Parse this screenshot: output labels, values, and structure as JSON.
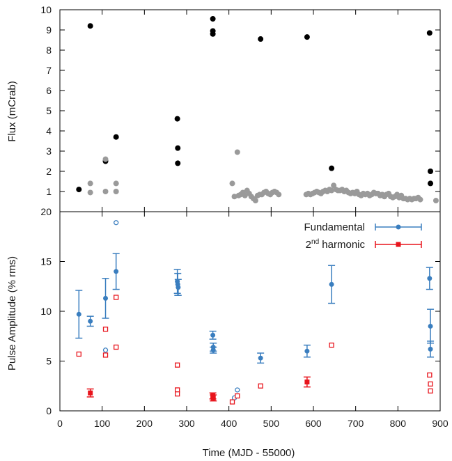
{
  "chart_data": [
    {
      "type": "scatter",
      "panel": "top",
      "xlim": [
        0,
        900
      ],
      "ylim": [
        0,
        10
      ],
      "ylabel": "Flux (mCrab)",
      "yticks": [
        "",
        "1",
        "2",
        "3",
        "4",
        "5",
        "6",
        "7",
        "8",
        "9",
        "10"
      ],
      "colors": {
        "black": "#000000",
        "gray": "#9a9a9a"
      },
      "series": [
        {
          "marker": "black-filled-circle",
          "points": [
            [
              45,
              1.1
            ],
            [
              72,
              9.2
            ],
            [
              108,
              2.5
            ],
            [
              133,
              3.7
            ],
            [
              278,
              4.6
            ],
            [
              279,
              3.15
            ],
            [
              279,
              2.4
            ],
            [
              362,
              9.55
            ],
            [
              362,
              8.95
            ],
            [
              362,
              8.8
            ],
            [
              475,
              8.55
            ],
            [
              585,
              8.65
            ],
            [
              643,
              2.15
            ],
            [
              875,
              8.85
            ],
            [
              877,
              2.0
            ],
            [
              877,
              1.4
            ]
          ]
        },
        {
          "marker": "gray-filled-circle",
          "points": [
            [
              72,
              1.4
            ],
            [
              72,
              0.95
            ],
            [
              108,
              2.6
            ],
            [
              108,
              1.0
            ],
            [
              133,
              1.4
            ],
            [
              133,
              1.0
            ],
            [
              408,
              1.4
            ],
            [
              413,
              0.75
            ],
            [
              420,
              2.95
            ],
            [
              423,
              0.8
            ],
            [
              428,
              0.85
            ],
            [
              433,
              0.95
            ],
            [
              438,
              0.8
            ],
            [
              443,
              1.05
            ],
            [
              448,
              0.9
            ],
            [
              453,
              0.75
            ],
            [
              458,
              0.65
            ],
            [
              463,
              0.55
            ],
            [
              468,
              0.8
            ],
            [
              473,
              0.85
            ],
            [
              478,
              0.85
            ],
            [
              483,
              0.95
            ],
            [
              488,
              1.0
            ],
            [
              493,
              0.9
            ],
            [
              498,
              0.85
            ],
            [
              503,
              0.95
            ],
            [
              508,
              1.0
            ],
            [
              513,
              0.95
            ],
            [
              518,
              0.85
            ],
            [
              583,
              0.85
            ],
            [
              588,
              0.9
            ],
            [
              593,
              0.85
            ],
            [
              598,
              0.9
            ],
            [
              603,
              0.95
            ],
            [
              608,
              1.0
            ],
            [
              613,
              0.95
            ],
            [
              618,
              0.9
            ],
            [
              623,
              1.0
            ],
            [
              628,
              1.05
            ],
            [
              633,
              1.0
            ],
            [
              638,
              1.1
            ],
            [
              643,
              1.05
            ],
            [
              648,
              1.3
            ],
            [
              653,
              1.1
            ],
            [
              658,
              1.05
            ],
            [
              663,
              1.05
            ],
            [
              668,
              1.1
            ],
            [
              673,
              1.0
            ],
            [
              678,
              1.05
            ],
            [
              683,
              0.95
            ],
            [
              688,
              0.9
            ],
            [
              693,
              0.95
            ],
            [
              698,
              0.9
            ],
            [
              703,
              1.0
            ],
            [
              708,
              0.85
            ],
            [
              713,
              0.8
            ],
            [
              718,
              0.9
            ],
            [
              723,
              0.85
            ],
            [
              728,
              0.9
            ],
            [
              733,
              0.8
            ],
            [
              738,
              0.85
            ],
            [
              743,
              0.95
            ],
            [
              748,
              0.9
            ],
            [
              753,
              0.9
            ],
            [
              758,
              0.8
            ],
            [
              763,
              0.85
            ],
            [
              768,
              0.75
            ],
            [
              773,
              0.85
            ],
            [
              778,
              0.9
            ],
            [
              783,
              0.75
            ],
            [
              788,
              0.7
            ],
            [
              793,
              0.75
            ],
            [
              798,
              0.85
            ],
            [
              803,
              0.7
            ],
            [
              808,
              0.8
            ],
            [
              813,
              0.65
            ],
            [
              818,
              0.65
            ],
            [
              823,
              0.6
            ],
            [
              828,
              0.65
            ],
            [
              833,
              0.6
            ],
            [
              838,
              0.65
            ],
            [
              843,
              0.65
            ],
            [
              848,
              0.7
            ],
            [
              853,
              0.6
            ],
            [
              890,
              0.55
            ]
          ]
        }
      ]
    },
    {
      "type": "scatter",
      "panel": "bottom",
      "xlim": [
        0,
        900
      ],
      "ylim": [
        0,
        20
      ],
      "xlabel": "Time (MJD - 55000)",
      "ylabel": "Pulse Amplitude (% rms)",
      "xticks": [
        0,
        100,
        200,
        300,
        400,
        500,
        600,
        700,
        800,
        900
      ],
      "yticks": [
        "0",
        "5",
        "10",
        "15",
        "20"
      ],
      "legend": {
        "position": "top-right",
        "entries": [
          {
            "label": "Fundamental",
            "color": "#3a7ebf"
          },
          {
            "label": "2",
            "superscript": "nd",
            "suffix": " harmonic",
            "color": "#e8141c"
          }
        ]
      },
      "series": [
        {
          "name": "Fundamental",
          "color": "#3a7ebf",
          "points_with_errors": [
            [
              45,
              9.7,
              2.4
            ],
            [
              72,
              9.0,
              0.5
            ],
            [
              108,
              11.3,
              2.0
            ],
            [
              133,
              14.0,
              1.8
            ],
            [
              278,
              13.0,
              1.2
            ],
            [
              279,
              12.7,
              1.1
            ],
            [
              280,
              12.4,
              0.8
            ],
            [
              362,
              7.6,
              0.4
            ],
            [
              363,
              6.4,
              0.4
            ],
            [
              363,
              6.1,
              0.3
            ],
            [
              475,
              5.3,
              0.5
            ],
            [
              585,
              6.0,
              0.6
            ],
            [
              643,
              12.7,
              1.9
            ],
            [
              875,
              13.3,
              1.1
            ],
            [
              877,
              8.5,
              1.7
            ],
            [
              877,
              6.2,
              0.8
            ]
          ],
          "open_points": [
            [
              133,
              18.9
            ],
            [
              108,
              6.1
            ],
            [
              413,
              1.3
            ],
            [
              420,
              2.1
            ]
          ]
        },
        {
          "name": "2nd harmonic",
          "color": "#e8141c",
          "points_with_errors": [
            [
              72,
              1.8,
              0.4
            ],
            [
              362,
              1.5,
              0.3
            ],
            [
              363,
              1.3,
              0.3
            ],
            [
              585,
              2.9,
              0.5
            ]
          ],
          "open_points": [
            [
              45,
              5.7
            ],
            [
              108,
              8.2
            ],
            [
              108,
              5.6
            ],
            [
              133,
              11.4
            ],
            [
              133,
              6.4
            ],
            [
              278,
              4.6
            ],
            [
              278,
              2.1
            ],
            [
              278,
              1.7
            ],
            [
              408,
              0.9
            ],
            [
              420,
              1.5
            ],
            [
              475,
              2.5
            ],
            [
              643,
              6.6
            ],
            [
              875,
              3.6
            ],
            [
              877,
              2.7
            ],
            [
              877,
              2.0
            ]
          ]
        }
      ]
    }
  ]
}
